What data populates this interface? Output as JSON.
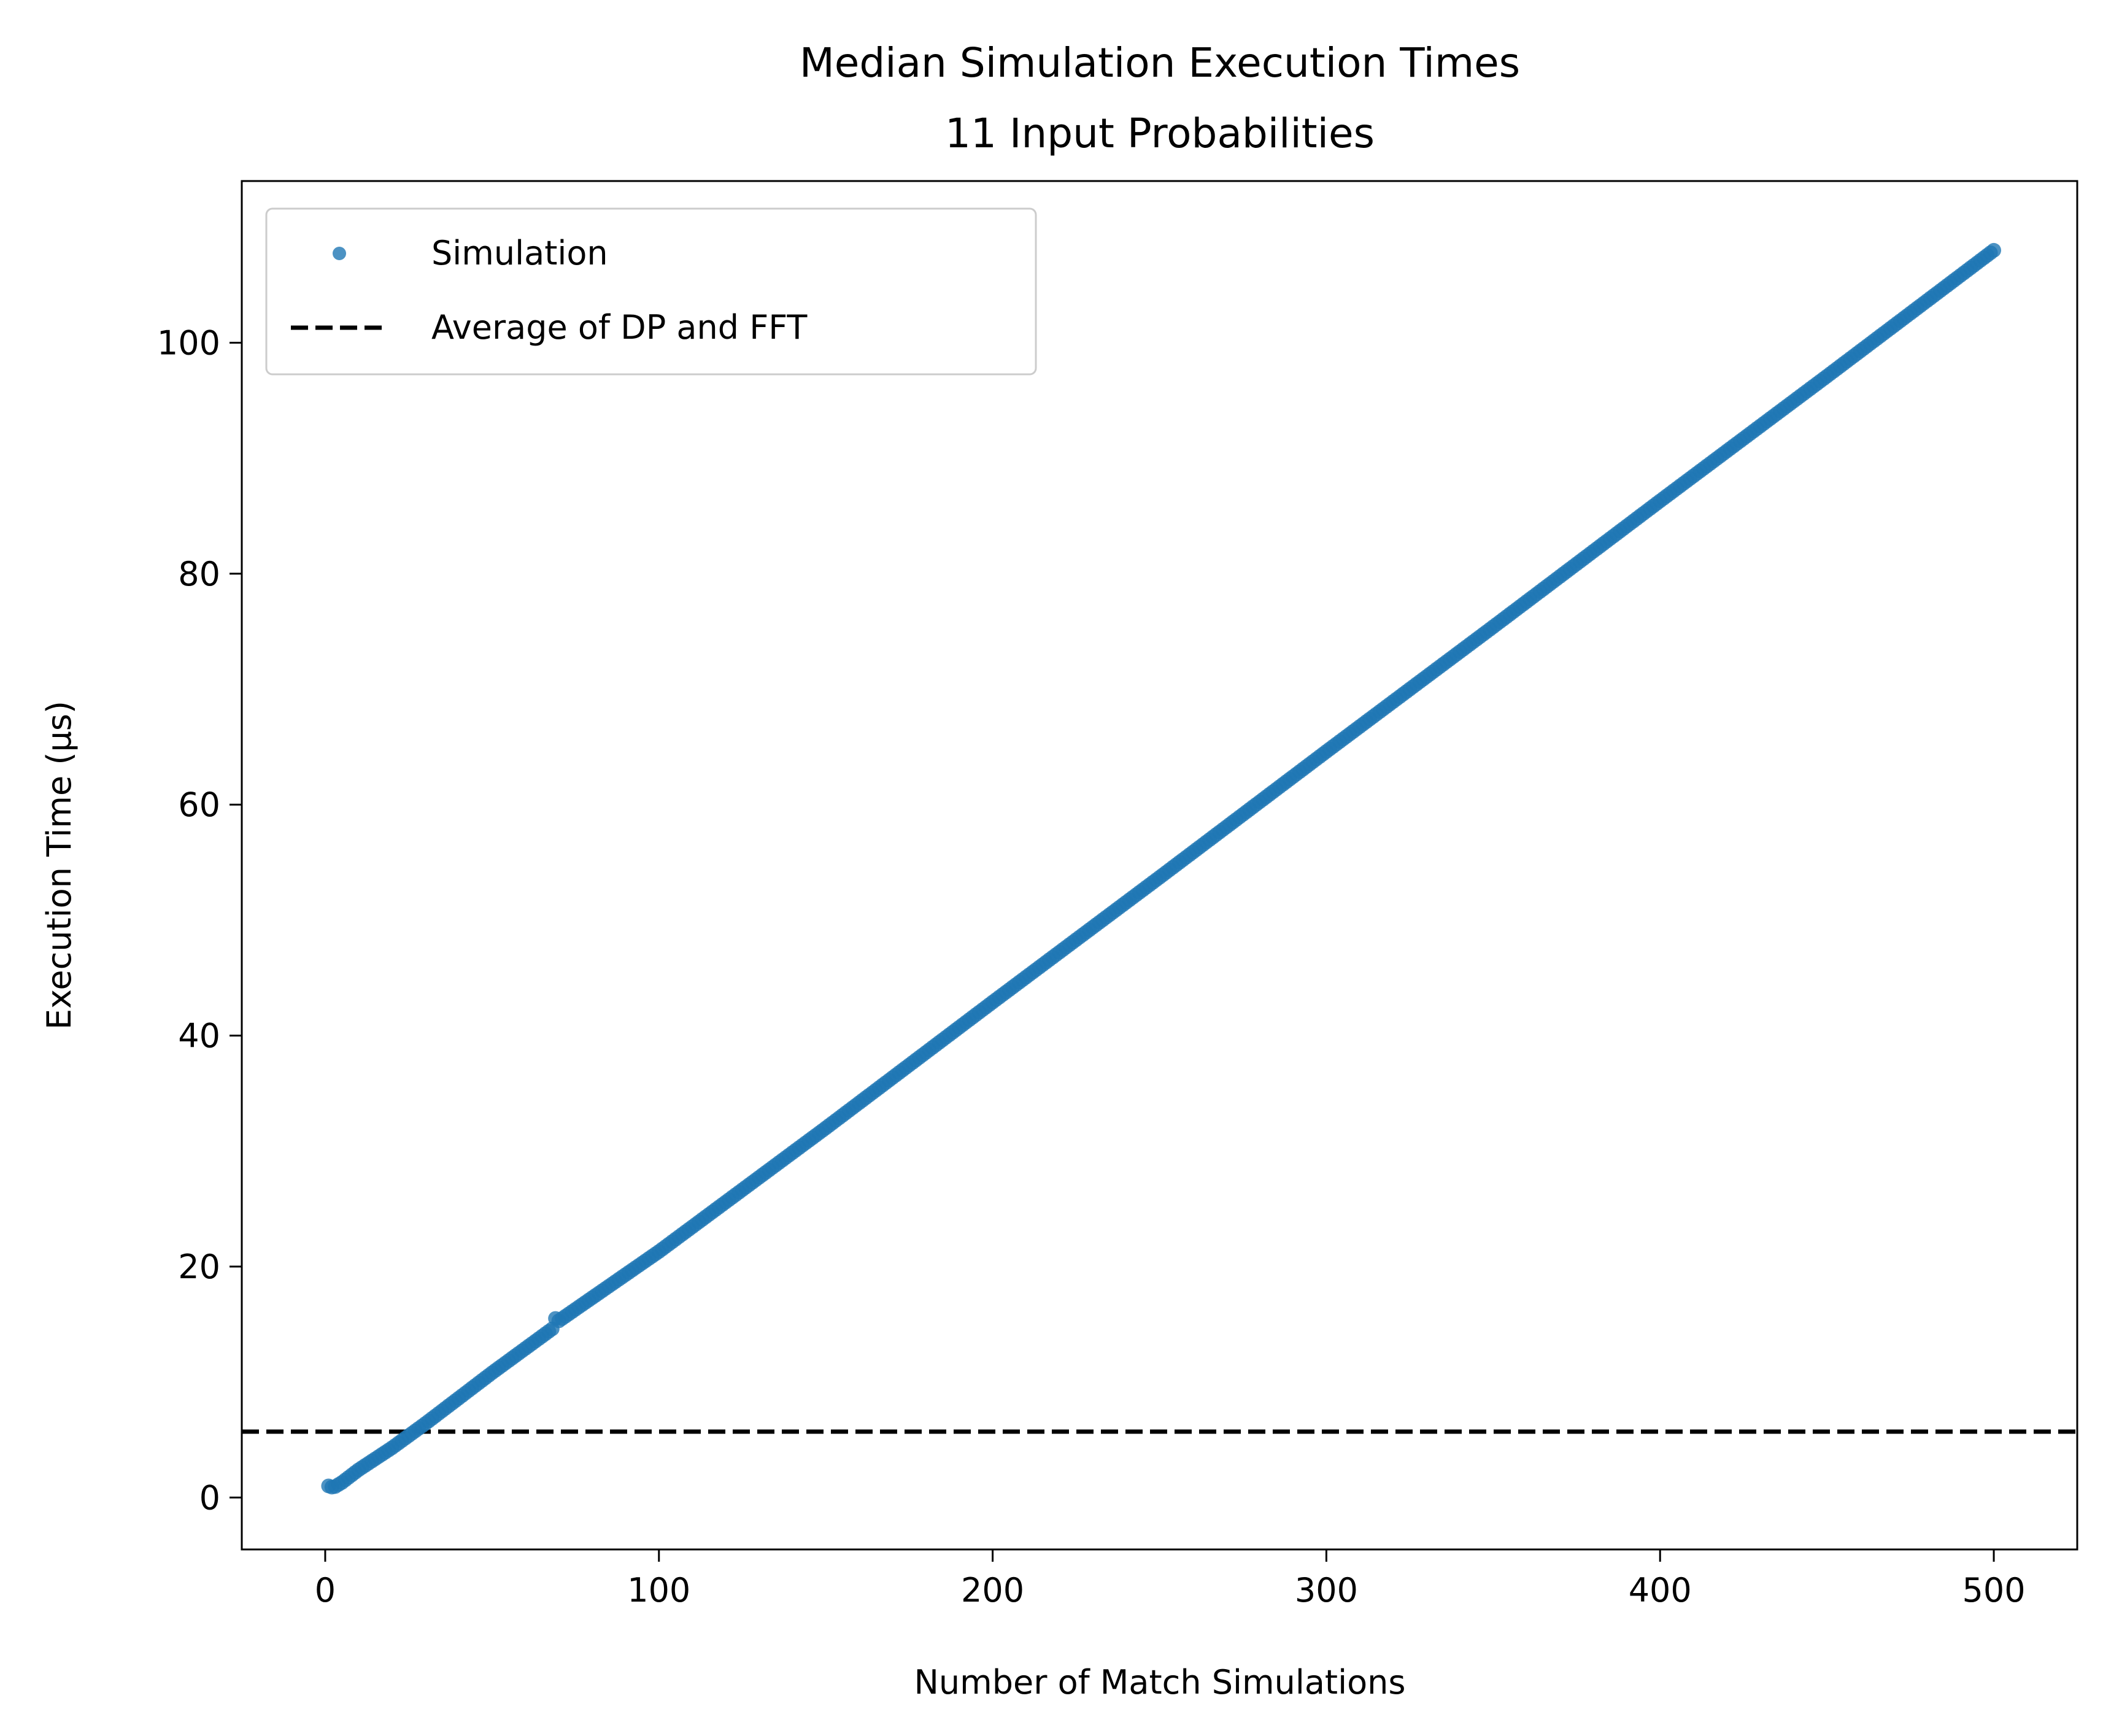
{
  "chart_data": {
    "type": "scatter",
    "title": "Median Simulation Execution Times",
    "subtitle": "11 Input Probabilities",
    "xlabel": "Number of Match Simulations",
    "ylabel": "Execution Time (µs)",
    "xlim": [
      -25,
      525
    ],
    "ylim": [
      -4.5,
      114
    ],
    "xticks": [
      0,
      100,
      200,
      300,
      400,
      500
    ],
    "xtick_labels": [
      "0",
      "100",
      "200",
      "300",
      "400",
      "500"
    ],
    "yticks": [
      0,
      20,
      40,
      60,
      80,
      100
    ],
    "ytick_labels": [
      "0",
      "20",
      "40",
      "60",
      "80",
      "100"
    ],
    "grid": false,
    "legend_position": "upper-left",
    "series": [
      {
        "name": "Simulation",
        "kind": "scatter",
        "color": "#1f77b4",
        "x_range": [
          1,
          500
        ],
        "x_step": 1,
        "points_xy": [
          [
            1,
            1.0
          ],
          [
            2,
            0.9
          ],
          [
            3,
            0.95
          ],
          [
            5,
            1.3
          ],
          [
            10,
            2.4
          ],
          [
            20,
            4.3
          ],
          [
            30,
            6.4
          ],
          [
            50,
            10.8
          ],
          [
            68,
            14.6
          ],
          [
            69,
            15.5
          ],
          [
            70,
            15.3
          ],
          [
            100,
            21.3
          ],
          [
            150,
            32.0
          ],
          [
            200,
            42.9
          ],
          [
            250,
            53.7
          ],
          [
            300,
            64.6
          ],
          [
            350,
            75.4
          ],
          [
            400,
            86.3
          ],
          [
            450,
            97.1
          ],
          [
            500,
            108.0
          ]
        ]
      },
      {
        "name": "Average of DP and FFT",
        "kind": "hline",
        "color": "#000000",
        "y": 5.7,
        "linestyle": "dashed"
      }
    ]
  }
}
